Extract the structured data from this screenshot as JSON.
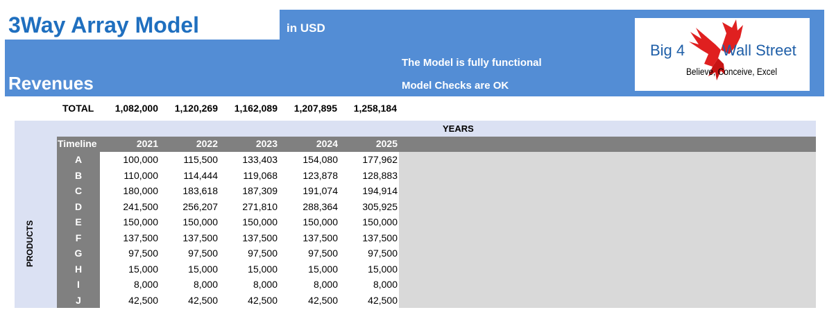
{
  "header": {
    "title": "3Way Array Model",
    "currency": "in USD",
    "section": "Revenues",
    "status_functional": "The Model is fully functional",
    "status_checks": "Model Checks are OK"
  },
  "logo": {
    "left_word": "Big 4",
    "right_word": "Wall Street",
    "tagline": "Believe, Conceive, Excel",
    "emblem": "red-eagle-icon"
  },
  "totals": {
    "label": "TOTAL",
    "values": [
      "1,082,000",
      "1,120,269",
      "1,162,089",
      "1,207,895",
      "1,258,184"
    ]
  },
  "table": {
    "years_label": "YEARS",
    "products_label": "PRODUCTS",
    "timeline_label": "Timeline",
    "years": [
      "2021",
      "2022",
      "2023",
      "2024",
      "2025"
    ],
    "rows": [
      {
        "product": "A",
        "values": [
          "100,000",
          "115,500",
          "133,403",
          "154,080",
          "177,962"
        ]
      },
      {
        "product": "B",
        "values": [
          "110,000",
          "114,444",
          "119,068",
          "123,878",
          "128,883"
        ]
      },
      {
        "product": "C",
        "values": [
          "180,000",
          "183,618",
          "187,309",
          "191,074",
          "194,914"
        ]
      },
      {
        "product": "D",
        "values": [
          "241,500",
          "256,207",
          "271,810",
          "288,364",
          "305,925"
        ]
      },
      {
        "product": "E",
        "values": [
          "150,000",
          "150,000",
          "150,000",
          "150,000",
          "150,000"
        ]
      },
      {
        "product": "F",
        "values": [
          "137,500",
          "137,500",
          "137,500",
          "137,500",
          "137,500"
        ]
      },
      {
        "product": "G",
        "values": [
          "97,500",
          "97,500",
          "97,500",
          "97,500",
          "97,500"
        ]
      },
      {
        "product": "H",
        "values": [
          "15,000",
          "15,000",
          "15,000",
          "15,000",
          "15,000"
        ]
      },
      {
        "product": "I",
        "values": [
          "8,000",
          "8,000",
          "8,000",
          "8,000",
          "8,000"
        ]
      },
      {
        "product": "J",
        "values": [
          "42,500",
          "42,500",
          "42,500",
          "42,500",
          "42,500"
        ]
      }
    ]
  },
  "colors": {
    "header_blue": "#538dd5",
    "title_blue": "#1f6fbf",
    "table_bg": "#dbe1f3",
    "header_gray": "#808080",
    "empty_gray": "#d9d9d9"
  }
}
